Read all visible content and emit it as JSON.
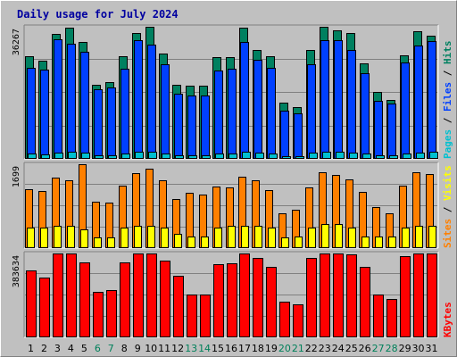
{
  "chart_data": {
    "type": "bar",
    "title": "Daily usage for July 2024",
    "categories": [
      "1",
      "2",
      "3",
      "4",
      "5",
      "6",
      "7",
      "8",
      "9",
      "10",
      "11",
      "12",
      "13",
      "14",
      "15",
      "16",
      "17",
      "18",
      "19",
      "20",
      "21",
      "22",
      "23",
      "24",
      "25",
      "26",
      "27",
      "28",
      "29",
      "30",
      "31"
    ],
    "weekend_days": [
      "6",
      "7",
      "13",
      "14",
      "20",
      "21",
      "27",
      "28"
    ],
    "panels": [
      {
        "id": "top",
        "ylabel_parts": [
          {
            "text": "Pages",
            "color": "#00c0d0"
          },
          {
            "text": " / ",
            "color": "#000000"
          },
          {
            "text": "Files",
            "color": "#0040ff"
          },
          {
            "text": " / ",
            "color": "#000000"
          },
          {
            "text": "Hits",
            "color": "#008060"
          }
        ],
        "max_label": "36267",
        "ymax": 36267,
        "series": [
          {
            "name": "Hits",
            "color": "#008060",
            "values": [
              28200,
              27000,
              34400,
              36000,
              32000,
              20400,
              21000,
              28200,
              34600,
              36267,
              28900,
              20300,
              20200,
              20200,
              28000,
              28000,
              36000,
              29800,
              28200,
              15500,
              14200,
              29800,
              36267,
              35300,
              34600,
              26200,
              18400,
              16200,
              28400,
              35000,
              33800
            ]
          },
          {
            "name": "Files",
            "color": "#0040ff",
            "values": [
              24900,
              24400,
              32900,
              31600,
              29300,
              19000,
              19700,
              24700,
              32700,
              31300,
              26000,
              18000,
              17300,
              17300,
              24200,
              24700,
              32200,
              27200,
              25000,
              13300,
              12400,
              25900,
              32700,
              32700,
              29800,
              23500,
              16000,
              15100,
              26500,
              31000,
              32400
            ]
          },
          {
            "name": "Pages",
            "color": "#00c0d0",
            "values": [
              1400,
              1200,
              1800,
              1900,
              1700,
              1100,
              1100,
              1500,
              1900,
              2000,
              1500,
              1000,
              1100,
              1100,
              1400,
              1500,
              1900,
              1700,
              1500,
              800,
              700,
              1600,
              2000,
              1900,
              1700,
              1400,
              900,
              900,
              1500,
              1800,
              1900
            ]
          }
        ]
      },
      {
        "id": "middle",
        "ylabel_parts": [
          {
            "text": "Sites",
            "color": "#ff8000"
          },
          {
            "text": " / ",
            "color": "#000000"
          },
          {
            "text": "Visits",
            "color": "#ffff00"
          }
        ],
        "max_label": "1699",
        "ymax": 1699,
        "series": [
          {
            "name": "Visits",
            "color": "#ff8000",
            "values": [
              1200,
              1160,
              1420,
              1370,
              1699,
              940,
              930,
              1260,
              1510,
              1600,
              1380,
              1000,
              1120,
              1080,
              1250,
              1230,
              1450,
              1380,
              1170,
              710,
              770,
              1230,
              1530,
              1490,
              1390,
              1130,
              830,
              710,
              1270,
              1530,
              1500
            ]
          },
          {
            "name": "Sites",
            "color": "#ffff00",
            "values": [
              410,
              410,
              460,
              460,
              380,
              220,
              220,
              410,
              460,
              460,
              410,
              290,
              230,
              230,
              410,
              450,
              460,
              460,
              410,
              220,
              230,
              410,
              490,
              490,
              420,
              230,
              230,
              230,
              410,
              450,
              450
            ]
          }
        ]
      },
      {
        "id": "bottom",
        "ylabel_parts": [
          {
            "text": "KBytes",
            "color": "#ff0000"
          }
        ],
        "max_label": "383634",
        "ymax": 383634,
        "series": [
          {
            "name": "KBytes",
            "color": "#ff0000",
            "values": [
              306000,
              272000,
              383634,
              383634,
              344000,
              210000,
              215000,
              341000,
              383634,
              383634,
              350000,
              280000,
              195000,
              195000,
              335000,
              337000,
              383634,
              362000,
              322000,
              165000,
              152000,
              365000,
              383634,
              383634,
              380000,
              322000,
              195000,
              175000,
              373000,
              383634,
              383634
            ]
          }
        ]
      }
    ]
  }
}
